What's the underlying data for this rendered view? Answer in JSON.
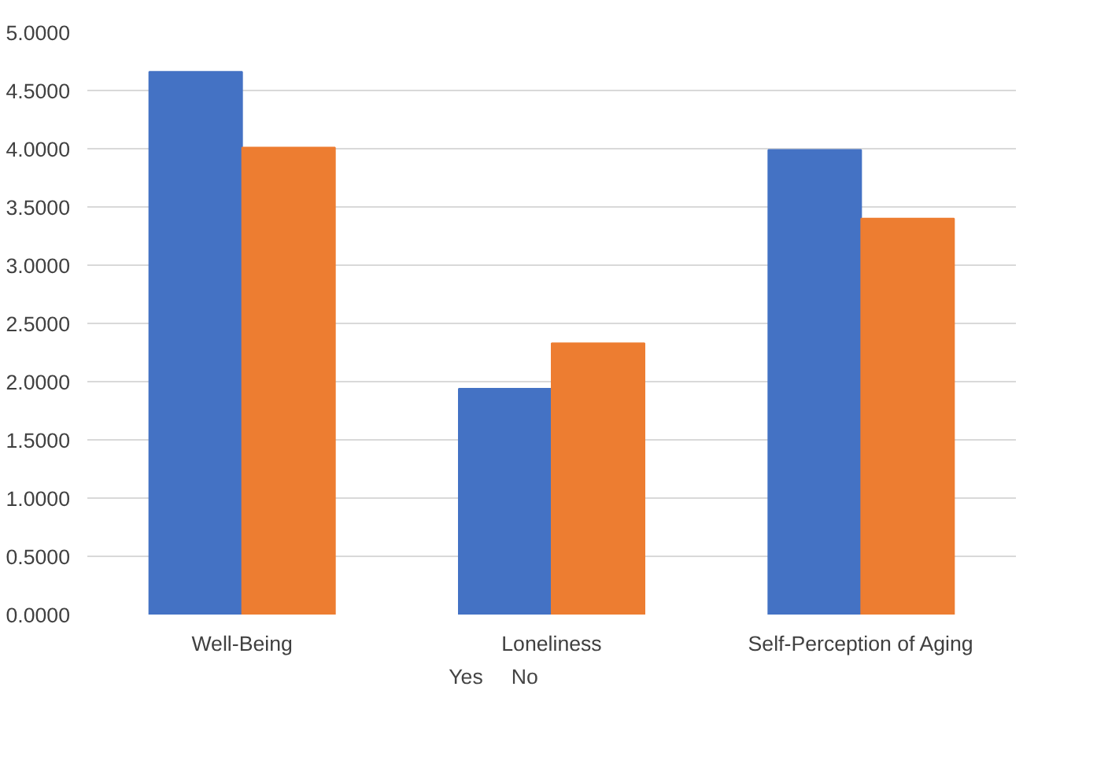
{
  "chart_data": {
    "type": "bar",
    "categories": [
      "Well-Being",
      "Loneliness",
      "Self-Perception of Aging"
    ],
    "series": [
      {
        "name": "Yes",
        "color": "#4472c4",
        "values": [
          4.66,
          1.94,
          3.99
        ]
      },
      {
        "name": "No",
        "color": "#ed7d31",
        "values": [
          4.01,
          2.33,
          3.4
        ]
      }
    ],
    "ylim": [
      0,
      5
    ],
    "yticks": [
      {
        "value": 0,
        "label": "0.0000"
      },
      {
        "value": 0.5,
        "label": "0.5000"
      },
      {
        "value": 1,
        "label": "1.0000"
      },
      {
        "value": 1.5,
        "label": "1.5000"
      },
      {
        "value": 2,
        "label": "2.0000"
      },
      {
        "value": 2.5,
        "label": "2.5000"
      },
      {
        "value": 3,
        "label": "3.0000"
      },
      {
        "value": 3.5,
        "label": "3.5000"
      },
      {
        "value": 4,
        "label": "4.0000"
      },
      {
        "value": 4.5,
        "label": "4.5000"
      },
      {
        "value": 5,
        "label": "5.0000"
      }
    ],
    "grid": "y",
    "legend": "bottom"
  }
}
